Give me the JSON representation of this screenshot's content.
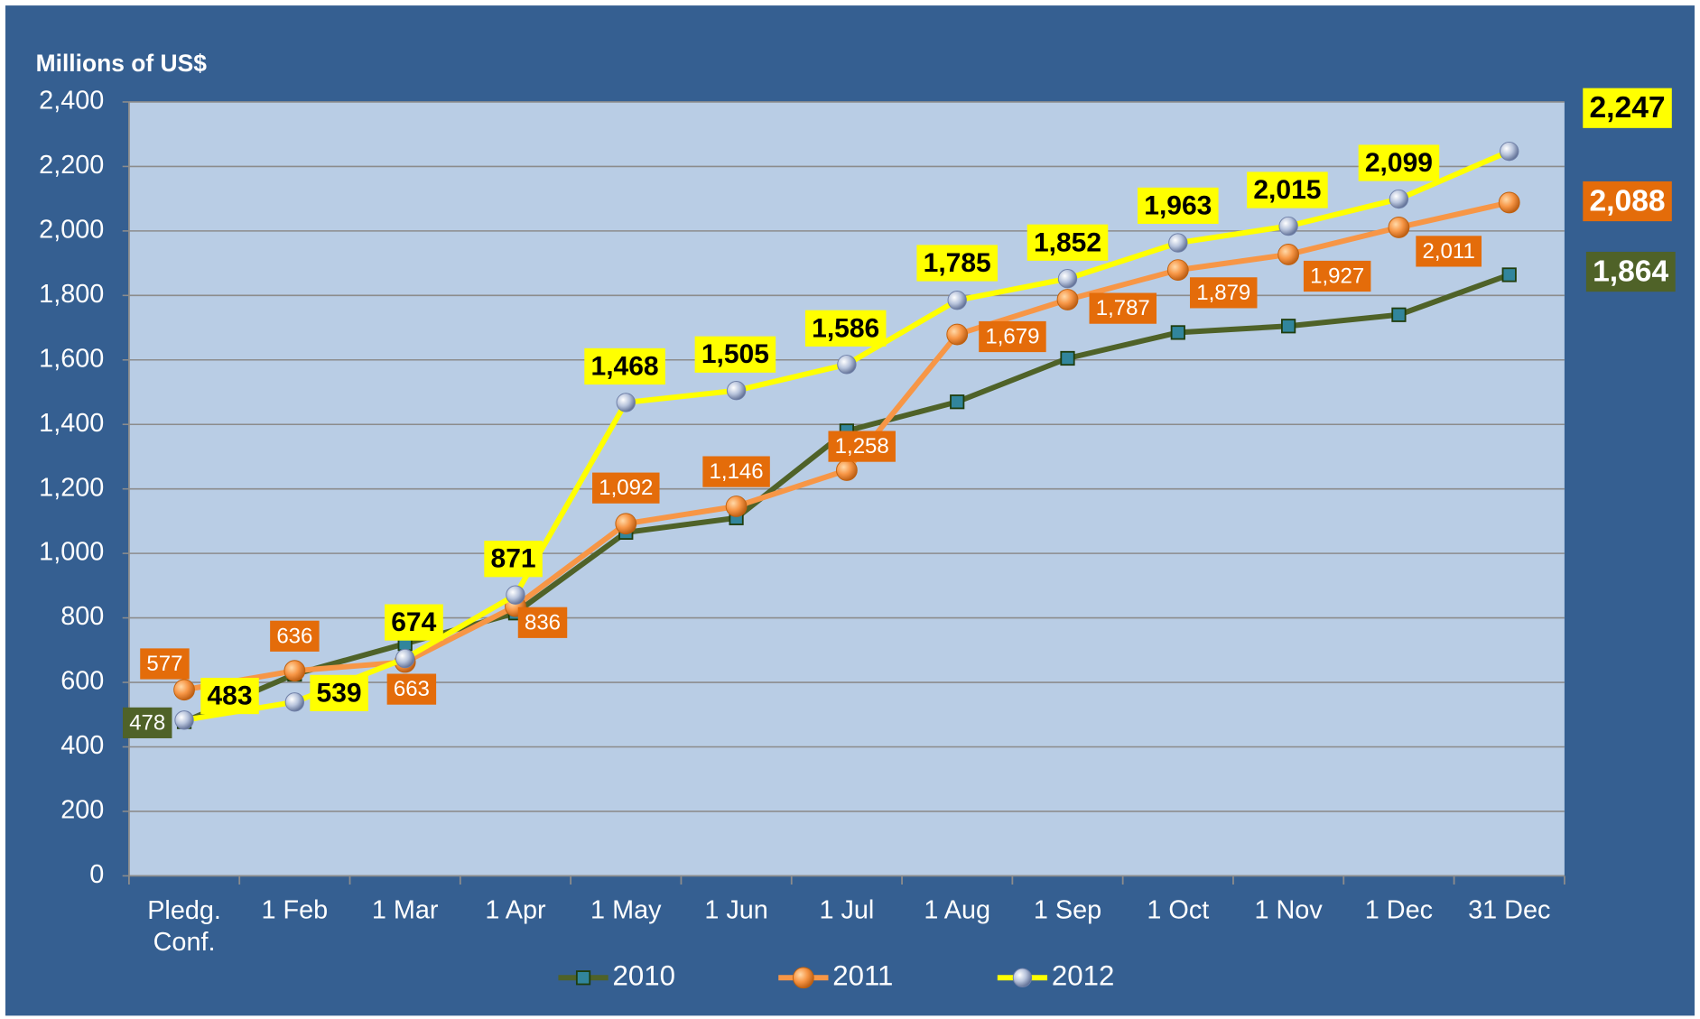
{
  "chart_data": {
    "type": "line",
    "y_label": "Millions of US$",
    "categories": [
      "Pledg.\nConf.",
      "1 Feb",
      "1 Mar",
      "1 Apr",
      "1 May",
      "1 Jun",
      "1 Jul",
      "1 Aug",
      "1 Sep",
      "1 Oct",
      "1 Nov",
      "1 Dec",
      "31 Dec"
    ],
    "series": [
      {
        "name": "2010",
        "color": "#4f6228",
        "values": [
          478,
          625,
          720,
          815,
          1065,
          1110,
          1380,
          1470,
          1605,
          1685,
          1705,
          1740,
          1864
        ],
        "value_labels": [
          "478",
          null,
          null,
          null,
          null,
          null,
          null,
          null,
          null,
          null,
          null,
          null,
          "1,864"
        ]
      },
      {
        "name": "2011",
        "color": "#f79646",
        "values": [
          577,
          636,
          663,
          836,
          1092,
          1146,
          1258,
          1679,
          1787,
          1879,
          1927,
          2011,
          2088
        ],
        "value_labels": [
          "577",
          "636",
          "663",
          "836",
          "1,092",
          "1,146",
          "1,258",
          "1,679",
          "1,787",
          "1,879",
          "1,927",
          "2,011",
          "2,088"
        ]
      },
      {
        "name": "2012",
        "color": "#ffff00",
        "values": [
          483,
          539,
          674,
          871,
          1468,
          1505,
          1586,
          1785,
          1852,
          1963,
          2015,
          2099,
          2247
        ],
        "value_labels": [
          "483",
          "539",
          "674",
          "871",
          "1,468",
          "1,505",
          "1,586",
          "1,785",
          "1,852",
          "1,963",
          "2,015",
          "2,099",
          "2,247"
        ]
      }
    ],
    "ylim": [
      0,
      2400
    ],
    "yticks": [
      0,
      200,
      400,
      600,
      800,
      {
        "value": 1000,
        "label": "1,000"
      },
      {
        "value": 1200,
        "label": "1,200"
      },
      {
        "value": 1400,
        "label": "1,400"
      },
      {
        "value": 1600,
        "label": "1,600"
      },
      {
        "value": 1800,
        "label": "1,800"
      },
      {
        "value": 2000,
        "label": "2,000"
      },
      {
        "value": 2200,
        "label": "2,200"
      },
      {
        "value": 2400,
        "label": "2,400"
      }
    ],
    "grid": true,
    "legend": "bottom"
  }
}
